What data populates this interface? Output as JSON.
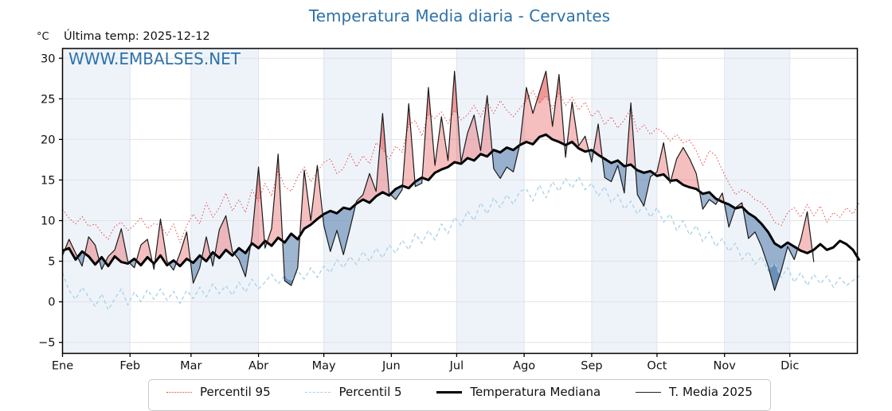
{
  "title": "Temperatura Media diaria - Cervantes",
  "y_axis_unit": "°C",
  "last_temp_label": "Última temp: 2025-12-12",
  "watermark": "WWW.EMBALSES.NET",
  "colors": {
    "title_blue": "#2e72a8",
    "watermark_blue": "#2e72a8",
    "p95_red": "#e84444",
    "p5_blue": "#a9d0e6",
    "median_black": "#000000",
    "t2025_black": "#1a1a1a",
    "fill_red": "rgba(232,88,88,0.38)",
    "fill_blue": "rgba(62,110,162,0.50)",
    "band_blue": "#eef3fa",
    "grid_gray": "#e2e2e2",
    "vgrid_gray": "#dfe4ec"
  },
  "legend": {
    "items": [
      {
        "id": "percentil-95",
        "label": "Percentil 95"
      },
      {
        "id": "percentil-5",
        "label": "Percentil 5"
      },
      {
        "id": "temperatura-mediana",
        "label": "Temperatura Mediana"
      },
      {
        "id": "t-media-2025",
        "label": "T. Media 2025"
      }
    ]
  },
  "chart_data": {
    "type": "line",
    "title": "Temperatura Media diaria - Cervantes",
    "ylabel": "°C",
    "ylim": [
      -6.35,
      31.2
    ],
    "yticks": [
      30,
      25,
      20,
      15,
      10,
      5,
      0,
      -5
    ],
    "grid": true,
    "legend_position": "bottom",
    "x_months": [
      "Ene",
      "Feb",
      "Mar",
      "Abr",
      "May",
      "Jun",
      "Jul",
      "Ago",
      "Sep",
      "Oct",
      "Nov",
      "Dic"
    ],
    "month_start_days": [
      0,
      31,
      59,
      90,
      120,
      151,
      181,
      212,
      243,
      273,
      304,
      334
    ],
    "days_in_year": 365,
    "shaded_months": "alternating starting with Ene",
    "sample_step_days": 3,
    "fills": "red between T.Media 2025 and mediana where above (darker above percentil 95); blue where below (darker below percentil 5)",
    "series": [
      {
        "name": "Percentil 95",
        "style": "dotted",
        "color": "#e84444",
        "width": 1,
        "values": [
          11.4,
          10.3,
          9.6,
          10.5,
          9.3,
          9.6,
          8.5,
          7.7,
          9.3,
          9.8,
          8.8,
          9.4,
          10.4,
          9.0,
          9.6,
          9.5,
          8.2,
          9.6,
          7.3,
          9.4,
          10.8,
          9.6,
          12.2,
          10.4,
          11.6,
          13.4,
          11.2,
          12.6,
          11.0,
          13.8,
          12.4,
          14.6,
          13.0,
          16.2,
          14.2,
          13.6,
          15.4,
          16.6,
          14.8,
          16.0,
          17.2,
          17.6,
          15.8,
          16.4,
          18.3,
          16.6,
          18.0,
          17.0,
          19.6,
          18.8,
          17.6,
          19.2,
          18.4,
          21.8,
          22.3,
          20.4,
          23.2,
          22.6,
          23.4,
          22.0,
          23.6,
          22.4,
          23.0,
          24.2,
          22.8,
          24.6,
          23.2,
          24.8,
          23.6,
          22.8,
          23.8,
          24.8,
          26.0,
          24.4,
          25.4,
          23.8,
          25.8,
          24.2,
          25.2,
          23.6,
          24.6,
          22.8,
          23.6,
          21.8,
          22.8,
          21.4,
          22.4,
          23.8,
          21.0,
          21.8,
          20.6,
          21.4,
          20.8,
          19.8,
          20.6,
          19.6,
          19.9,
          18.6,
          16.8,
          18.6,
          18.0,
          16.2,
          14.6,
          13.2,
          13.8,
          13.4,
          12.6,
          12.2,
          11.4,
          9.8,
          9.4,
          11.0,
          11.6,
          10.4,
          12.0,
          10.6,
          11.8,
          9.8,
          11.0,
          10.4,
          11.6,
          10.8,
          12.3
        ]
      },
      {
        "name": "Percentil 5",
        "style": "dashed",
        "color": "#a9d0e6",
        "width": 1.3,
        "values": [
          3.6,
          1.4,
          0.3,
          1.8,
          0.6,
          -0.6,
          1.0,
          -1.0,
          0.4,
          1.6,
          -0.4,
          1.2,
          0.0,
          1.5,
          0.3,
          1.6,
          0.2,
          1.3,
          -0.2,
          1.4,
          0.4,
          1.8,
          0.6,
          2.2,
          1.0,
          2.0,
          0.8,
          2.4,
          1.2,
          2.8,
          1.6,
          2.4,
          3.4,
          2.2,
          3.2,
          2.6,
          3.8,
          2.8,
          4.2,
          3.0,
          4.4,
          3.6,
          5.2,
          4.2,
          5.6,
          4.6,
          6.2,
          5.0,
          6.6,
          5.4,
          7.0,
          6.0,
          7.6,
          6.4,
          8.4,
          7.2,
          8.8,
          7.6,
          9.6,
          8.4,
          10.4,
          9.4,
          11.2,
          10.0,
          12.2,
          10.8,
          12.8,
          11.6,
          13.2,
          12.0,
          13.6,
          13.9,
          12.4,
          14.4,
          12.8,
          14.8,
          13.6,
          15.2,
          14.0,
          15.4,
          13.8,
          14.6,
          13.0,
          14.2,
          12.2,
          13.2,
          11.4,
          12.4,
          10.8,
          12.0,
          10.4,
          11.6,
          9.8,
          10.8,
          8.8,
          10.0,
          8.2,
          9.4,
          7.4,
          8.6,
          6.8,
          7.8,
          6.2,
          7.2,
          5.2,
          6.2,
          4.6,
          5.6,
          3.8,
          4.8,
          3.0,
          4.2,
          2.4,
          3.6,
          2.0,
          3.4,
          2.2,
          3.2,
          1.8,
          3.0,
          2.0,
          2.6,
          3.2
        ]
      },
      {
        "name": "Temperatura Mediana",
        "style": "solid",
        "color": "#000000",
        "width": 3,
        "values": [
          6.3,
          6.6,
          5.2,
          6.2,
          5.6,
          4.6,
          5.5,
          4.4,
          5.6,
          4.9,
          4.7,
          5.3,
          4.5,
          5.5,
          4.7,
          5.7,
          4.5,
          5.1,
          4.4,
          5.3,
          4.8,
          5.7,
          5.0,
          6.1,
          5.4,
          6.4,
          5.7,
          6.6,
          6.0,
          7.2,
          6.6,
          7.5,
          6.9,
          7.9,
          7.3,
          8.4,
          7.7,
          9.0,
          9.5,
          10.2,
          10.8,
          11.2,
          10.9,
          11.6,
          11.4,
          12.1,
          12.6,
          12.2,
          13.0,
          13.5,
          13.1,
          13.9,
          14.3,
          14.0,
          14.8,
          15.3,
          15.0,
          15.9,
          16.3,
          16.6,
          17.2,
          17.0,
          17.7,
          17.4,
          18.2,
          17.9,
          18.7,
          18.4,
          19.0,
          18.7,
          19.3,
          19.7,
          19.4,
          20.3,
          20.6,
          20.0,
          19.7,
          19.3,
          19.7,
          18.9,
          18.5,
          18.7,
          18.1,
          17.6,
          17.1,
          17.4,
          16.7,
          16.9,
          16.2,
          15.9,
          16.1,
          15.5,
          15.7,
          14.9,
          15.0,
          14.4,
          14.1,
          13.9,
          13.3,
          13.5,
          12.7,
          12.3,
          12.0,
          11.5,
          11.7,
          10.9,
          10.4,
          9.6,
          8.6,
          7.2,
          6.7,
          7.3,
          6.8,
          6.3,
          6.0,
          6.4,
          7.1,
          6.4,
          6.7,
          7.5,
          7.1,
          6.4,
          5.1
        ]
      },
      {
        "name": "T. Media 2025",
        "style": "solid",
        "color": "#1a1a1a",
        "width": 1.2,
        "ends_day": 345,
        "values": [
          5.7,
          7.7,
          6.0,
          4.4,
          8.0,
          7.0,
          4.0,
          5.6,
          6.4,
          9.0,
          5.0,
          4.2,
          7.0,
          7.7,
          4.0,
          10.2,
          5.0,
          3.9,
          6.0,
          8.6,
          2.3,
          4.2,
          8.0,
          4.4,
          8.9,
          10.6,
          6.2,
          5.2,
          3.1,
          8.0,
          16.6,
          6.6,
          9.0,
          18.2,
          2.6,
          2.0,
          4.2,
          16.2,
          10.0,
          16.8,
          9.4,
          6.2,
          8.8,
          5.8,
          9.0,
          12.4,
          13.2,
          15.8,
          13.6,
          23.2,
          13.4,
          12.6,
          13.8,
          24.4,
          14.2,
          14.6,
          26.4,
          16.8,
          22.8,
          17.4,
          28.4,
          17.2,
          20.8,
          23.0,
          18.6,
          25.4,
          16.4,
          15.2,
          16.6,
          16.0,
          19.4,
          26.4,
          23.2,
          25.8,
          28.4,
          21.6,
          28.0,
          17.8,
          24.6,
          19.2,
          20.4,
          17.2,
          21.9,
          15.3,
          14.8,
          16.8,
          13.4,
          24.5,
          13.2,
          11.8,
          15.4,
          16.0,
          19.6,
          14.6,
          17.6,
          19.0,
          17.6,
          15.8,
          11.4,
          12.6,
          12.0,
          13.4,
          9.2,
          11.6,
          12.2,
          7.8,
          8.6,
          6.8,
          4.4,
          1.4,
          3.8,
          6.8,
          5.2,
          7.6,
          11.1,
          4.9
        ]
      }
    ]
  }
}
